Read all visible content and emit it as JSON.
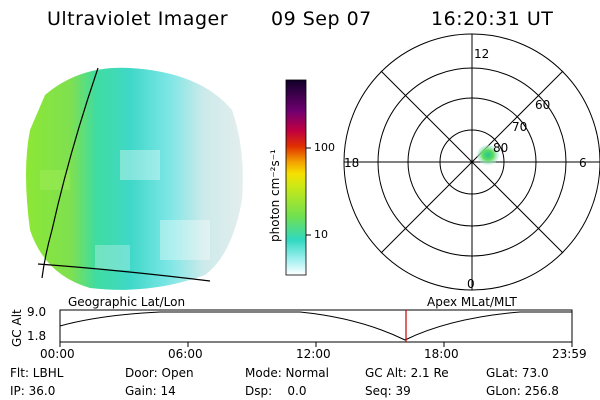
{
  "header": {
    "title": "Ultraviolet Imager",
    "date": "09 Sep 07",
    "time": "16:20:31 UT"
  },
  "colorbar": {
    "unit_label": "photon cm⁻²s⁻¹",
    "ticks": [
      "100",
      "10"
    ]
  },
  "polar_plot": {
    "mlt_labels": [
      "12",
      "18",
      "6",
      "0"
    ],
    "lat_labels": [
      "60",
      "70",
      "80"
    ]
  },
  "timeline": {
    "left_title": "Geographic Lat/Lon",
    "right_title": "Apex MLat/MLT",
    "y_label": "GC Alt",
    "y_ticks": [
      "9.0",
      "1.8"
    ],
    "x_ticks": [
      "00:00",
      "06:00",
      "12:00",
      "18:00",
      "23:59"
    ],
    "current_time_color": "#cc0000"
  },
  "status": {
    "flt": "Flt: LBHL",
    "door": "Door: Open",
    "mode": "Mode: Normal",
    "gc_alt": "GC Alt: 2.1 Re",
    "glat": "GLat:  73.0",
    "ip": "IP: 36.0",
    "gain": "Gain: 14",
    "dsp": "Dsp:    0.0",
    "seq": "Seq: 39",
    "glon": "GLon: 256.8"
  }
}
